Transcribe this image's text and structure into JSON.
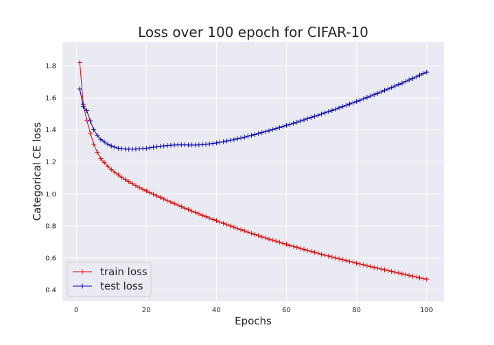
{
  "chart_data": {
    "type": "line",
    "title": "Loss over 100 epoch for CIFAR-10",
    "xlabel": "Epochs",
    "ylabel": "Categorical CE loss",
    "xlim": [
      -3.95,
      104.95
    ],
    "ylim": [
      0.33,
      1.95
    ],
    "xticks": [
      0,
      20,
      40,
      60,
      80,
      100
    ],
    "yticks": [
      0.4,
      0.6,
      0.8,
      1.0,
      1.2,
      1.4,
      1.6,
      1.8
    ],
    "ytick_labels": [
      "0.4",
      "0.6",
      "0.8",
      "1.0",
      "1.2",
      "1.4",
      "1.6",
      "1.8"
    ],
    "grid": true,
    "legend_position": "lower-left",
    "marker": "plus",
    "x": [
      1,
      2,
      3,
      4,
      5,
      6,
      7,
      8,
      9,
      10,
      11,
      12,
      13,
      14,
      15,
      16,
      17,
      18,
      19,
      20,
      21,
      22,
      23,
      24,
      25,
      26,
      27,
      28,
      29,
      30,
      31,
      32,
      33,
      34,
      35,
      36,
      37,
      38,
      39,
      40,
      41,
      42,
      43,
      44,
      45,
      46,
      47,
      48,
      49,
      50,
      51,
      52,
      53,
      54,
      55,
      56,
      57,
      58,
      59,
      60,
      61,
      62,
      63,
      64,
      65,
      66,
      67,
      68,
      69,
      70,
      71,
      72,
      73,
      74,
      75,
      76,
      77,
      78,
      79,
      80,
      81,
      82,
      83,
      84,
      85,
      86,
      87,
      88,
      89,
      90,
      91,
      92,
      93,
      94,
      95,
      96,
      97,
      98,
      99,
      100
    ],
    "series": [
      {
        "name": "train loss",
        "color": "#e00000",
        "values": [
          1.82,
          1.56,
          1.46,
          1.38,
          1.31,
          1.26,
          1.22,
          1.195,
          1.172,
          1.152,
          1.134,
          1.118,
          1.103,
          1.089,
          1.076,
          1.063,
          1.051,
          1.04,
          1.029,
          1.018,
          1.008,
          0.998,
          0.988,
          0.978,
          0.968,
          0.958,
          0.949,
          0.939,
          0.93,
          0.921,
          0.911,
          0.902,
          0.893,
          0.884,
          0.875,
          0.866,
          0.858,
          0.849,
          0.841,
          0.832,
          0.824,
          0.816,
          0.808,
          0.8,
          0.792,
          0.784,
          0.776,
          0.769,
          0.761,
          0.754,
          0.747,
          0.739,
          0.732,
          0.725,
          0.718,
          0.711,
          0.705,
          0.698,
          0.691,
          0.685,
          0.678,
          0.672,
          0.666,
          0.659,
          0.653,
          0.647,
          0.641,
          0.635,
          0.629,
          0.623,
          0.617,
          0.612,
          0.606,
          0.6,
          0.595,
          0.589,
          0.584,
          0.578,
          0.573,
          0.567,
          0.562,
          0.557,
          0.551,
          0.546,
          0.541,
          0.536,
          0.531,
          0.526,
          0.521,
          0.516,
          0.511,
          0.506,
          0.501,
          0.496,
          0.491,
          0.486,
          0.481,
          0.476,
          0.472,
          0.467
        ]
      },
      {
        "name": "test loss",
        "color": "#0000b0",
        "values": [
          1.655,
          1.545,
          1.52,
          1.455,
          1.4,
          1.365,
          1.34,
          1.325,
          1.31,
          1.3,
          1.292,
          1.285,
          1.282,
          1.28,
          1.279,
          1.279,
          1.28,
          1.281,
          1.283,
          1.285,
          1.288,
          1.291,
          1.294,
          1.297,
          1.3,
          1.302,
          1.304,
          1.305,
          1.306,
          1.306,
          1.306,
          1.305,
          1.305,
          1.305,
          1.306,
          1.308,
          1.31,
          1.312,
          1.315,
          1.318,
          1.322,
          1.326,
          1.33,
          1.335,
          1.339,
          1.344,
          1.349,
          1.354,
          1.36,
          1.365,
          1.371,
          1.377,
          1.383,
          1.389,
          1.395,
          1.401,
          1.408,
          1.414,
          1.421,
          1.428,
          1.434,
          1.441,
          1.448,
          1.455,
          1.462,
          1.469,
          1.477,
          1.484,
          1.491,
          1.499,
          1.506,
          1.514,
          1.521,
          1.529,
          1.537,
          1.545,
          1.553,
          1.561,
          1.569,
          1.577,
          1.585,
          1.594,
          1.602,
          1.611,
          1.619,
          1.628,
          1.637,
          1.646,
          1.655,
          1.664,
          1.673,
          1.683,
          1.692,
          1.702,
          1.711,
          1.721,
          1.731,
          1.741,
          1.751,
          1.761
        ]
      }
    ]
  }
}
